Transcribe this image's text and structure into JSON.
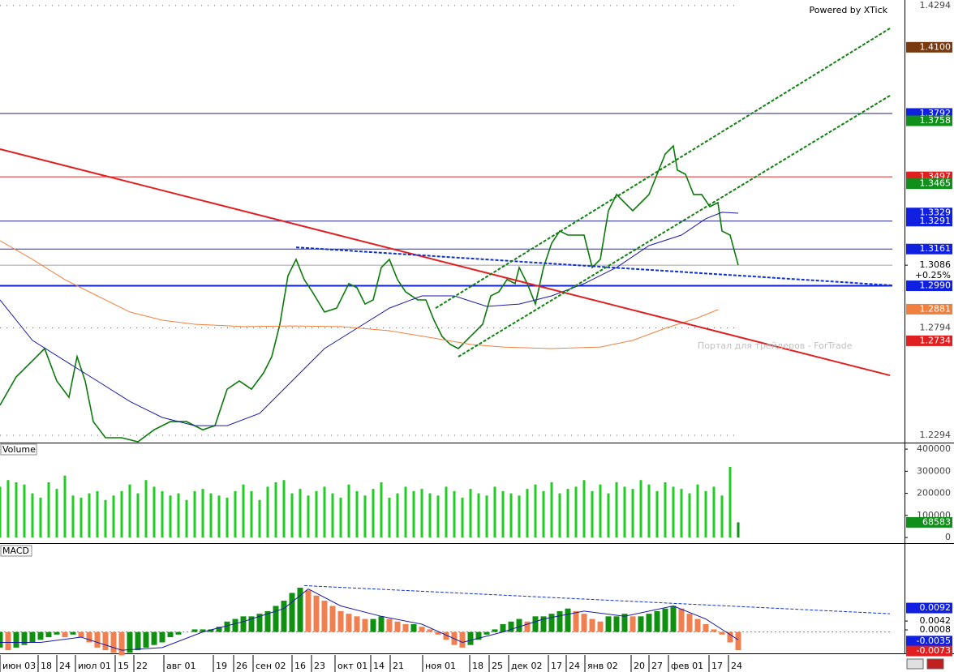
{
  "chart_data": [
    {
      "type": "line",
      "annotations": [
        "Powered by XTick",
        "Портал для трейдеров - ForTrade"
      ],
      "xlim": [
        0,
        223
      ],
      "xticks": [
        {
          "value": 0,
          "label": "июн 03"
        },
        {
          "value": 9.4,
          "label": "18"
        },
        {
          "value": 14,
          "label": "24"
        },
        {
          "value": 18.6,
          "label": "июл 01"
        },
        {
          "value": 28.4,
          "label": "15"
        },
        {
          "value": 33,
          "label": "22"
        },
        {
          "value": 40.4,
          "label": "авг 01"
        },
        {
          "value": 52.6,
          "label": "19"
        },
        {
          "value": 57.6,
          "label": "26"
        },
        {
          "value": 62.4,
          "label": "сен 02"
        },
        {
          "value": 72,
          "label": "16"
        },
        {
          "value": 76.8,
          "label": "23"
        },
        {
          "value": 82.6,
          "label": "окт 01"
        },
        {
          "value": 91.4,
          "label": "14"
        },
        {
          "value": 96.2,
          "label": "21"
        },
        {
          "value": 104.2,
          "label": "ноя 01"
        },
        {
          "value": 115.8,
          "label": "18"
        },
        {
          "value": 120.6,
          "label": "25"
        },
        {
          "value": 125.4,
          "label": "дек 02"
        },
        {
          "value": 135.2,
          "label": "17"
        },
        {
          "value": 139.6,
          "label": "24"
        },
        {
          "value": 144.2,
          "label": "янв 02"
        },
        {
          "value": 155.6,
          "label": "20"
        },
        {
          "value": 160,
          "label": "27"
        },
        {
          "value": 164.8,
          "label": "фев 01"
        },
        {
          "value": 174.8,
          "label": "17"
        },
        {
          "value": 179.6,
          "label": "24"
        }
      ],
      "ylim": [
        1.2264,
        1.432
      ],
      "yticks": [
        1.4294,
        1.2794,
        1.2294
      ],
      "grid": true,
      "series": [
        {
          "color": "#0a7a0a",
          "x": [
            0,
            4,
            8,
            11,
            14,
            17,
            19,
            21,
            23,
            26,
            30,
            34,
            38,
            42,
            46,
            50,
            53,
            56,
            59,
            62,
            65,
            67,
            69,
            71,
            73,
            75,
            77,
            80,
            83,
            86,
            88,
            90,
            92,
            94,
            96,
            98,
            100,
            103,
            105,
            107,
            109,
            111,
            113,
            115,
            117,
            119,
            121,
            123,
            125,
            127,
            128,
            130,
            132,
            134,
            136,
            138,
            140,
            142,
            144,
            146,
            148,
            150,
            152,
            154,
            156,
            158,
            160,
            162,
            164,
            166,
            167,
            169,
            171,
            173,
            175,
            177,
            178,
            180,
            182
          ],
          "values": [
            1.2434,
            1.2566,
            1.2641,
            1.2698,
            1.2547,
            1.2471,
            1.266,
            1.2547,
            1.2358,
            1.2283,
            1.2283,
            1.2264,
            1.232,
            1.2358,
            1.2358,
            1.232,
            1.2339,
            1.2509,
            1.2547,
            1.2509,
            1.2585,
            1.266,
            1.2811,
            1.3037,
            1.3113,
            1.3019,
            1.2962,
            1.2868,
            1.2886,
            1.3,
            1.2981,
            1.2905,
            1.2924,
            1.3075,
            1.3113,
            1.3019,
            1.2962,
            1.2924,
            1.2924,
            1.283,
            1.2754,
            1.2717,
            1.2698,
            1.2736,
            1.2773,
            1.2811,
            1.2943,
            1.2962,
            1.3019,
            1.3,
            1.3075,
            1.3,
            1.2905,
            1.3075,
            1.3188,
            1.3245,
            1.3226,
            1.3226,
            1.3226,
            1.3075,
            1.3113,
            1.3339,
            1.3415,
            1.3377,
            1.3339,
            1.3377,
            1.3415,
            1.3509,
            1.3603,
            1.3641,
            1.3528,
            1.3509,
            1.3415,
            1.3415,
            1.3358,
            1.3377,
            1.3245,
            1.3226,
            1.3086
          ]
        },
        {
          "color": "#1a1aa8",
          "x": [
            0,
            8,
            16,
            24,
            32,
            40,
            48,
            56,
            64,
            72,
            80,
            88,
            96,
            104,
            112,
            120,
            128,
            136,
            144,
            152,
            160,
            168,
            174,
            178,
            182
          ],
          "values": [
            1.2924,
            1.2736,
            1.2641,
            1.2547,
            1.2452,
            1.2377,
            1.2339,
            1.2339,
            1.2396,
            1.2547,
            1.2698,
            1.2792,
            1.2886,
            1.2943,
            1.2943,
            1.2894,
            1.2905,
            1.2943,
            1.3,
            1.3075,
            1.3177,
            1.3226,
            1.3302,
            1.3332,
            1.3328
          ]
        },
        {
          "color": "#f08040",
          "x": [
            0,
            8,
            16,
            24,
            32,
            40,
            48,
            60,
            72,
            84,
            96,
            108,
            116,
            124,
            136,
            148,
            156,
            164,
            172,
            177
          ],
          "values": [
            1.32,
            1.3113,
            1.3019,
            1.2943,
            1.2868,
            1.283,
            1.2811,
            1.28,
            1.2803,
            1.28,
            1.2781,
            1.2743,
            1.2717,
            1.2705,
            1.2698,
            1.2705,
            1.2736,
            1.2792,
            1.2841,
            1.2879
          ]
        }
      ],
      "trend_lines": [
        {
          "x": [
            0,
            219.4
          ],
          "values": [
            1.3626,
            1.2573
          ],
          "color": "#e02020",
          "dashed": false
        },
        {
          "x": [
            73,
            220
          ],
          "values": [
            1.3169,
            1.2992
          ],
          "color": "#1030d0",
          "dashed": true
        },
        {
          "x": [
            113,
            219.4
          ],
          "values": [
            1.266,
            1.3875
          ],
          "color": "#108010",
          "dashed": true
        },
        {
          "x": [
            107.4,
            219.4
          ],
          "values": [
            1.2886,
            1.4188
          ],
          "color": "#108010",
          "dashed": true
        }
      ],
      "hlines": [
        {
          "value": 1.3792,
          "color": "#202080"
        },
        {
          "value": 1.3497,
          "color": "#e02020"
        },
        {
          "value": 1.3291,
          "color": "#202080"
        },
        {
          "value": 1.3161,
          "color": "#2030c0"
        },
        {
          "value": 1.3086,
          "color": "#a0a0a0"
        },
        {
          "value": 1.299,
          "color": "#1020e0"
        }
      ],
      "price_labels": [
        {
          "value": 1.41,
          "label": "1.4100",
          "color": "#7a3a10"
        },
        {
          "value": 1.3792,
          "label": "1.3792",
          "color": "#1020e0"
        },
        {
          "value": 1.3758,
          "label": "1.3758",
          "color": "#10901a"
        },
        {
          "value": 1.3497,
          "label": "1.3497",
          "color": "#e02020"
        },
        {
          "value": 1.3465,
          "label": "1.3465",
          "color": "#10901a"
        },
        {
          "value": 1.3329,
          "label": "1.3329",
          "color": "#1020e0"
        },
        {
          "value": 1.3291,
          "label": "1.3291",
          "color": "#1020e0"
        },
        {
          "value": 1.3161,
          "label": "1.3161",
          "color": "#1020e0"
        },
        {
          "value": 1.3086,
          "label": "1.3086",
          "change": "+0.25%"
        },
        {
          "value": 1.299,
          "label": "1.2990",
          "color": "#1020e0"
        },
        {
          "value": 1.2881,
          "label": "1.2881",
          "color": "#f08040"
        },
        {
          "value": 1.2734,
          "label": "1.2734",
          "color": "#e02020"
        }
      ]
    },
    {
      "type": "bar",
      "title": "Volume",
      "color": "#22cc22",
      "ylim": [
        -7000,
        426000
      ],
      "yticks": [
        0,
        100000,
        200000,
        300000,
        400000
      ],
      "x": [
        0,
        2,
        4,
        6,
        8,
        10,
        12,
        14,
        16,
        18,
        20,
        22,
        24,
        26,
        28,
        30,
        32,
        34,
        36,
        38,
        40,
        42,
        44,
        46,
        48,
        50,
        52,
        54,
        56,
        58,
        60,
        62,
        64,
        66,
        68,
        70,
        72,
        74,
        76,
        78,
        80,
        82,
        84,
        86,
        88,
        90,
        92,
        94,
        96,
        98,
        100,
        102,
        104,
        106,
        108,
        110,
        112,
        114,
        116,
        118,
        120,
        122,
        124,
        126,
        128,
        130,
        132,
        134,
        136,
        138,
        140,
        142,
        144,
        146,
        148,
        150,
        152,
        154,
        156,
        158,
        160,
        162,
        164,
        166,
        168,
        170,
        172,
        174,
        176,
        178,
        180,
        182
      ],
      "values": [
        230000,
        260000,
        250000,
        240000,
        200000,
        180000,
        250000,
        220000,
        280000,
        190000,
        180000,
        200000,
        210000,
        170000,
        190000,
        210000,
        240000,
        200000,
        260000,
        230000,
        210000,
        190000,
        200000,
        170000,
        210000,
        220000,
        200000,
        190000,
        180000,
        210000,
        240000,
        210000,
        170000,
        230000,
        250000,
        260000,
        200000,
        220000,
        190000,
        210000,
        230000,
        200000,
        180000,
        240000,
        210000,
        190000,
        220000,
        250000,
        180000,
        200000,
        230000,
        210000,
        220000,
        200000,
        190000,
        230000,
        210000,
        180000,
        220000,
        200000,
        190000,
        230000,
        210000,
        200000,
        190000,
        220000,
        240000,
        210000,
        250000,
        200000,
        220000,
        230000,
        260000,
        210000,
        240000,
        200000,
        250000,
        230000,
        220000,
        260000,
        240000,
        210000,
        250000,
        230000,
        220000,
        200000,
        240000,
        210000,
        230000,
        190000,
        320000,
        68583
      ],
      "last_color": "#10901a"
    },
    {
      "type": "bar",
      "title": "MACD",
      "color": "#109010",
      "down_color": "#f08050",
      "ylim": [
        -0.0079,
        0.0335
      ],
      "x": [
        0,
        2,
        4,
        6,
        8,
        10,
        12,
        14,
        16,
        18,
        20,
        22,
        24,
        26,
        28,
        30,
        32,
        34,
        36,
        38,
        40,
        42,
        44,
        46,
        48,
        50,
        52,
        54,
        56,
        58,
        60,
        62,
        64,
        66,
        68,
        70,
        72,
        74,
        76,
        78,
        80,
        82,
        84,
        86,
        88,
        90,
        92,
        94,
        96,
        98,
        100,
        102,
        104,
        106,
        108,
        110,
        112,
        114,
        116,
        118,
        120,
        122,
        124,
        126,
        128,
        130,
        132,
        134,
        136,
        138,
        140,
        142,
        144,
        146,
        148,
        150,
        152,
        154,
        156,
        158,
        160,
        162,
        164,
        166,
        168,
        170,
        172,
        174,
        176,
        178,
        180,
        182
      ],
      "values": [
        -0.006,
        -0.007,
        -0.006,
        -0.005,
        -0.004,
        -0.003,
        -0.002,
        -0.001,
        -0.002,
        -0.001,
        -0.002,
        -0.004,
        -0.006,
        -0.007,
        -0.008,
        -0.009,
        -0.008,
        -0.007,
        -0.006,
        -0.005,
        -0.004,
        -0.002,
        -0.001,
        0.0,
        0.001,
        0.001,
        0.001,
        0.002,
        0.004,
        0.005,
        0.006,
        0.006,
        0.007,
        0.008,
        0.01,
        0.012,
        0.015,
        0.017,
        0.016,
        0.014,
        0.012,
        0.01,
        0.008,
        0.007,
        0.006,
        0.005,
        0.005,
        0.006,
        0.005,
        0.004,
        0.003,
        0.003,
        0.002,
        0.001,
        -0.001,
        -0.003,
        -0.005,
        -0.006,
        -0.005,
        -0.003,
        -0.001,
        0.001,
        0.003,
        0.004,
        0.005,
        0.004,
        0.006,
        0.006,
        0.007,
        0.008,
        0.009,
        0.008,
        0.007,
        0.005,
        0.004,
        0.006,
        0.006,
        0.007,
        0.006,
        0.006,
        0.007,
        0.008,
        0.009,
        0.01,
        0.009,
        0.007,
        0.005,
        0.003,
        0.001,
        -0.001,
        -0.004,
        -0.007
      ],
      "series": [
        {
          "color": "#1a1aa8",
          "x": [
            0,
            10,
            20,
            30,
            40,
            50,
            60,
            70,
            76,
            84,
            94,
            104,
            114,
            124,
            134,
            144,
            154,
            166,
            174,
            182
          ],
          "values": [
            -0.004,
            -0.004,
            -0.002,
            -0.007,
            -0.006,
            0.0,
            0.004,
            0.009,
            0.0165,
            0.01,
            0.006,
            0.003,
            -0.004,
            0.0,
            0.005,
            0.008,
            0.006,
            0.01,
            0.005,
            -0.003
          ]
        }
      ],
      "trend_lines": [
        {
          "x": [
            75,
            219.4
          ],
          "values": [
            0.0178,
            0.007
          ],
          "color": "#1030d0",
          "dashed": true
        }
      ],
      "hlines": [
        {
          "value": 0,
          "color": "#808080",
          "dashed": true
        }
      ],
      "price_labels": [
        {
          "value": 0.0092,
          "label": "0.0092",
          "color": "#1020e0"
        },
        {
          "value": 0.0042,
          "label": "0.0042"
        },
        {
          "value": 0.0008,
          "label": "0.0008"
        },
        {
          "value": -0.0035,
          "label": "-0.0035",
          "color": "#1020e0"
        },
        {
          "value": -0.0073,
          "label": "-0.0073",
          "color": "#e02020"
        }
      ]
    }
  ]
}
